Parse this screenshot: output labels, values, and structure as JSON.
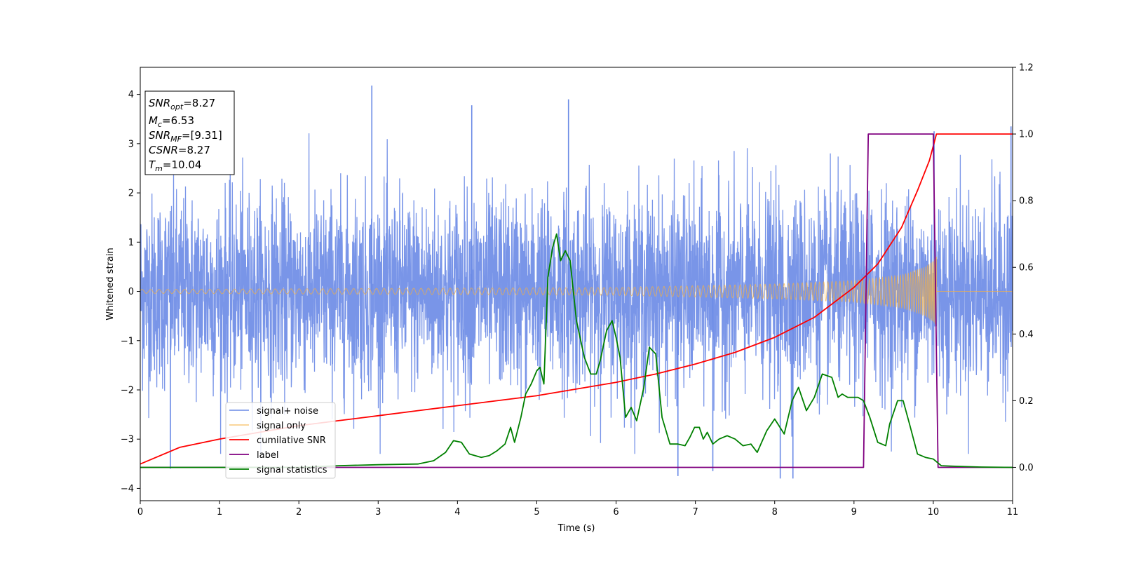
{
  "chart_data": {
    "type": "line",
    "xlabel": "Time (s)",
    "ylabel": "Whitened strain",
    "xlim": [
      0,
      11
    ],
    "ylim": [
      -4.25,
      4.55
    ],
    "y2lim": [
      -0.1,
      1.2
    ],
    "x_ticks": [
      "0",
      "1",
      "2",
      "3",
      "4",
      "5",
      "6",
      "7",
      "8",
      "9",
      "10",
      "11"
    ],
    "y_ticks": [
      "−4",
      "−3",
      "−2",
      "−1",
      "0",
      "1",
      "2",
      "3",
      "4"
    ],
    "y2_ticks": [
      "0.0",
      "0.2",
      "0.4",
      "0.6",
      "0.8",
      "1.0",
      "1.2"
    ],
    "grid": false,
    "legend_position": "lower-left",
    "stats": [
      {
        "name": "SNR",
        "sub": "opt",
        "value": "=8.27"
      },
      {
        "name": "M",
        "sub": "c",
        "value": "=6.53"
      },
      {
        "name": "SNR",
        "sub": "MF",
        "value": "=[9.31]"
      },
      {
        "name": "CSNR",
        "sub": "",
        "value": "=8.27"
      },
      {
        "name": "T",
        "sub": "m",
        "value": "=10.04"
      }
    ],
    "series": [
      {
        "name": "signal+ noise",
        "color": "#6a8ae6",
        "axis": "left",
        "style": "noise",
        "amplitude_rms": 0.98,
        "spikes": [
          [
            0.38,
            -3.6
          ],
          [
            2.92,
            4.18
          ],
          [
            4.18,
            3.78
          ],
          [
            5.4,
            3.9
          ],
          [
            6.78,
            -3.75
          ],
          [
            7.22,
            -3.65
          ],
          [
            8.07,
            -3.8
          ],
          [
            8.23,
            -3.8
          ],
          [
            10.01,
            3.25
          ],
          [
            10.98,
            3.35
          ]
        ]
      },
      {
        "name": "signal only",
        "color": "#f5b041",
        "axis": "left",
        "style": "chirp",
        "chirp_start": 0.0,
        "chirp_end": 10.04,
        "envelope": [
          [
            0,
            0.04
          ],
          [
            6,
            0.08
          ],
          [
            8,
            0.15
          ],
          [
            9,
            0.22
          ],
          [
            9.6,
            0.33
          ],
          [
            9.9,
            0.5
          ],
          [
            10.0,
            0.62
          ],
          [
            10.04,
            0.72
          ]
        ]
      },
      {
        "name": "cumilative SNR",
        "color": "#ff0000",
        "axis": "right",
        "x": [
          0,
          0.5,
          1,
          1.5,
          2,
          2.5,
          3,
          3.5,
          4,
          4.5,
          5,
          5.5,
          6,
          6.5,
          7,
          7.5,
          8,
          8.5,
          9,
          9.3,
          9.6,
          9.8,
          9.95,
          10.04,
          10.1,
          11
        ],
        "values": [
          0.01,
          0.06,
          0.085,
          0.105,
          0.125,
          0.14,
          0.155,
          0.17,
          0.185,
          0.2,
          0.215,
          0.235,
          0.255,
          0.28,
          0.31,
          0.345,
          0.39,
          0.45,
          0.54,
          0.61,
          0.72,
          0.83,
          0.92,
          1.0,
          1.0,
          1.0
        ]
      },
      {
        "name": "label",
        "color": "#800080",
        "axis": "right",
        "x": [
          0,
          9.12,
          9.18,
          10.0,
          10.06,
          11
        ],
        "values": [
          0,
          0,
          1,
          1,
          0,
          0
        ]
      },
      {
        "name": "signal statistics",
        "color": "#008000",
        "axis": "right",
        "x": [
          0,
          1,
          2,
          2.5,
          3,
          3.5,
          3.7,
          3.85,
          3.95,
          4.05,
          4.15,
          4.3,
          4.4,
          4.5,
          4.6,
          4.67,
          4.72,
          4.8,
          4.86,
          4.93,
          5.0,
          5.04,
          5.09,
          5.14,
          5.2,
          5.25,
          5.3,
          5.36,
          5.42,
          5.5,
          5.6,
          5.68,
          5.75,
          5.8,
          5.88,
          5.95,
          6.0,
          6.05,
          6.12,
          6.19,
          6.26,
          6.35,
          6.42,
          6.5,
          6.58,
          6.68,
          6.78,
          6.87,
          6.93,
          6.99,
          7.05,
          7.1,
          7.15,
          7.22,
          7.3,
          7.4,
          7.5,
          7.6,
          7.7,
          7.78,
          7.9,
          8.0,
          8.12,
          8.22,
          8.3,
          8.4,
          8.5,
          8.6,
          8.72,
          8.8,
          8.85,
          8.92,
          9.05,
          9.12,
          9.2,
          9.3,
          9.4,
          9.45,
          9.55,
          9.62,
          9.7,
          9.8,
          9.9,
          10.0,
          10.1,
          10.3,
          10.6,
          11
        ],
        "values": [
          0,
          0,
          0,
          0.005,
          0.008,
          0.01,
          0.02,
          0.045,
          0.08,
          0.075,
          0.04,
          0.03,
          0.035,
          0.05,
          0.07,
          0.12,
          0.075,
          0.15,
          0.22,
          0.25,
          0.29,
          0.3,
          0.25,
          0.57,
          0.66,
          0.7,
          0.62,
          0.65,
          0.62,
          0.44,
          0.33,
          0.28,
          0.28,
          0.32,
          0.41,
          0.44,
          0.39,
          0.33,
          0.15,
          0.18,
          0.14,
          0.24,
          0.36,
          0.34,
          0.15,
          0.07,
          0.07,
          0.065,
          0.09,
          0.12,
          0.12,
          0.085,
          0.105,
          0.07,
          0.085,
          0.095,
          0.085,
          0.065,
          0.07,
          0.045,
          0.11,
          0.145,
          0.1,
          0.2,
          0.24,
          0.17,
          0.21,
          0.28,
          0.27,
          0.21,
          0.22,
          0.21,
          0.21,
          0.2,
          0.15,
          0.075,
          0.065,
          0.13,
          0.2,
          0.2,
          0.13,
          0.04,
          0.03,
          0.025,
          0.005,
          0.003,
          0.001,
          0
        ]
      }
    ]
  }
}
